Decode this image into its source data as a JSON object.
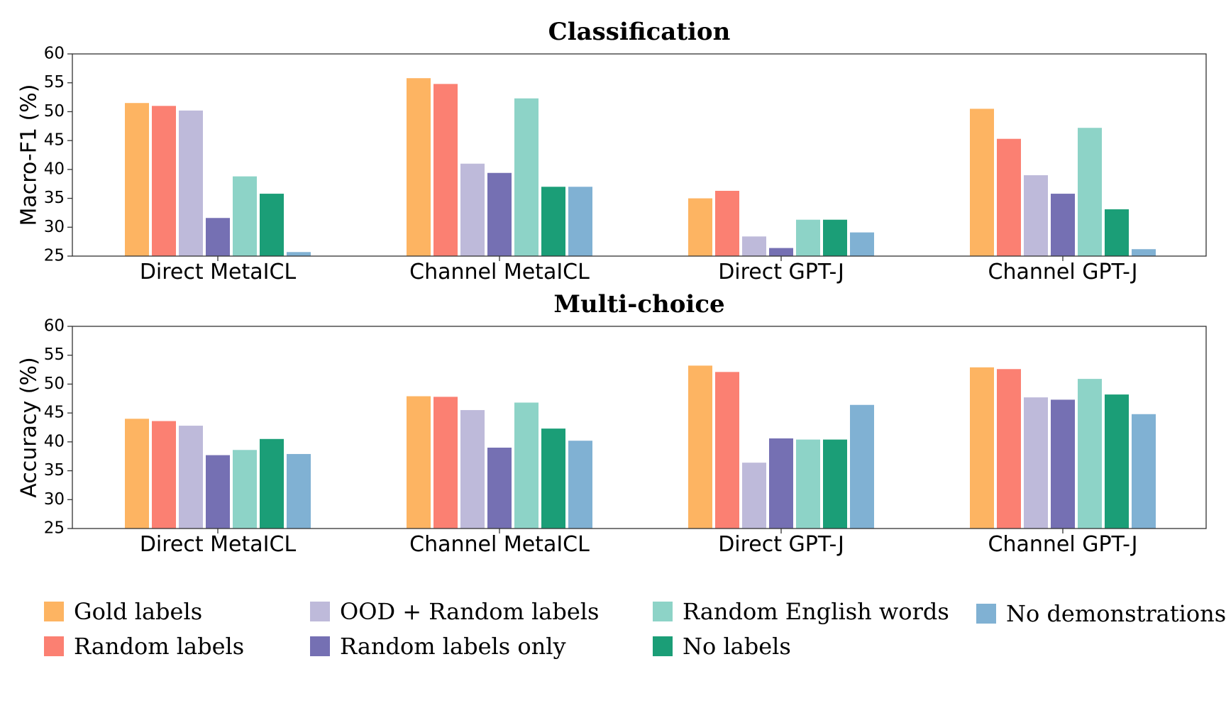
{
  "chart_data": [
    {
      "type": "bar",
      "title": "Classification",
      "ylabel": "Macro-F1 (%)",
      "ylim": [
        25,
        60
      ],
      "yticks": [
        25,
        30,
        35,
        40,
        45,
        50,
        55,
        60
      ],
      "categories": [
        "Direct MetaICL",
        "Channel MetaICL",
        "Direct GPT-J",
        "Channel GPT-J"
      ],
      "series": [
        {
          "name": "Gold labels",
          "color": "#fdb462",
          "values": [
            51.5,
            55.8,
            35.0,
            50.5
          ]
        },
        {
          "name": "Random labels",
          "color": "#fb8072",
          "values": [
            51.0,
            54.8,
            36.3,
            45.3
          ]
        },
        {
          "name": "OOD + Random labels",
          "color": "#bebada",
          "values": [
            50.2,
            41.0,
            28.4,
            39.0
          ]
        },
        {
          "name": "Random labels only",
          "color": "#7570b3",
          "values": [
            31.6,
            39.4,
            26.4,
            35.8
          ]
        },
        {
          "name": "Random English words",
          "color": "#8dd3c7",
          "values": [
            38.8,
            52.3,
            31.3,
            47.2
          ]
        },
        {
          "name": "No labels",
          "color": "#1b9e77",
          "values": [
            35.8,
            37.0,
            31.3,
            33.1
          ]
        },
        {
          "name": "No demonstrations",
          "color": "#80b1d3",
          "values": [
            25.7,
            37.0,
            29.1,
            26.2
          ]
        }
      ],
      "grid": false,
      "legend": "bottom"
    },
    {
      "type": "bar",
      "title": "Multi-choice",
      "ylabel": "Accuracy (%)",
      "ylim": [
        25,
        60
      ],
      "yticks": [
        25,
        30,
        35,
        40,
        45,
        50,
        55,
        60
      ],
      "categories": [
        "Direct MetaICL",
        "Channel MetaICL",
        "Direct GPT-J",
        "Channel GPT-J"
      ],
      "series": [
        {
          "name": "Gold labels",
          "color": "#fdb462",
          "values": [
            44.0,
            47.9,
            53.2,
            52.9
          ]
        },
        {
          "name": "Random labels",
          "color": "#fb8072",
          "values": [
            43.6,
            47.8,
            52.1,
            52.6
          ]
        },
        {
          "name": "OOD + Random labels",
          "color": "#bebada",
          "values": [
            42.8,
            45.5,
            36.4,
            47.7
          ]
        },
        {
          "name": "Random labels only",
          "color": "#7570b3",
          "values": [
            37.7,
            39.0,
            40.6,
            47.3
          ]
        },
        {
          "name": "Random English words",
          "color": "#8dd3c7",
          "values": [
            38.6,
            46.8,
            40.4,
            50.9
          ]
        },
        {
          "name": "No labels",
          "color": "#1b9e77",
          "values": [
            40.5,
            42.3,
            40.4,
            48.2
          ]
        },
        {
          "name": "No demonstrations",
          "color": "#80b1d3",
          "values": [
            37.9,
            40.2,
            46.4,
            44.8
          ]
        }
      ],
      "grid": false,
      "legend": "bottom"
    }
  ],
  "legend": {
    "placement": "bottom",
    "items": [
      {
        "label": "Gold labels",
        "color": "#fdb462"
      },
      {
        "label": "Random labels",
        "color": "#fb8072"
      },
      {
        "label": "OOD + Random labels",
        "color": "#bebada"
      },
      {
        "label": "Random labels only",
        "color": "#7570b3"
      },
      {
        "label": "Random English words",
        "color": "#8dd3c7"
      },
      {
        "label": "No labels",
        "color": "#1b9e77"
      },
      {
        "label": "No demonstrations",
        "color": "#80b1d3"
      }
    ]
  }
}
